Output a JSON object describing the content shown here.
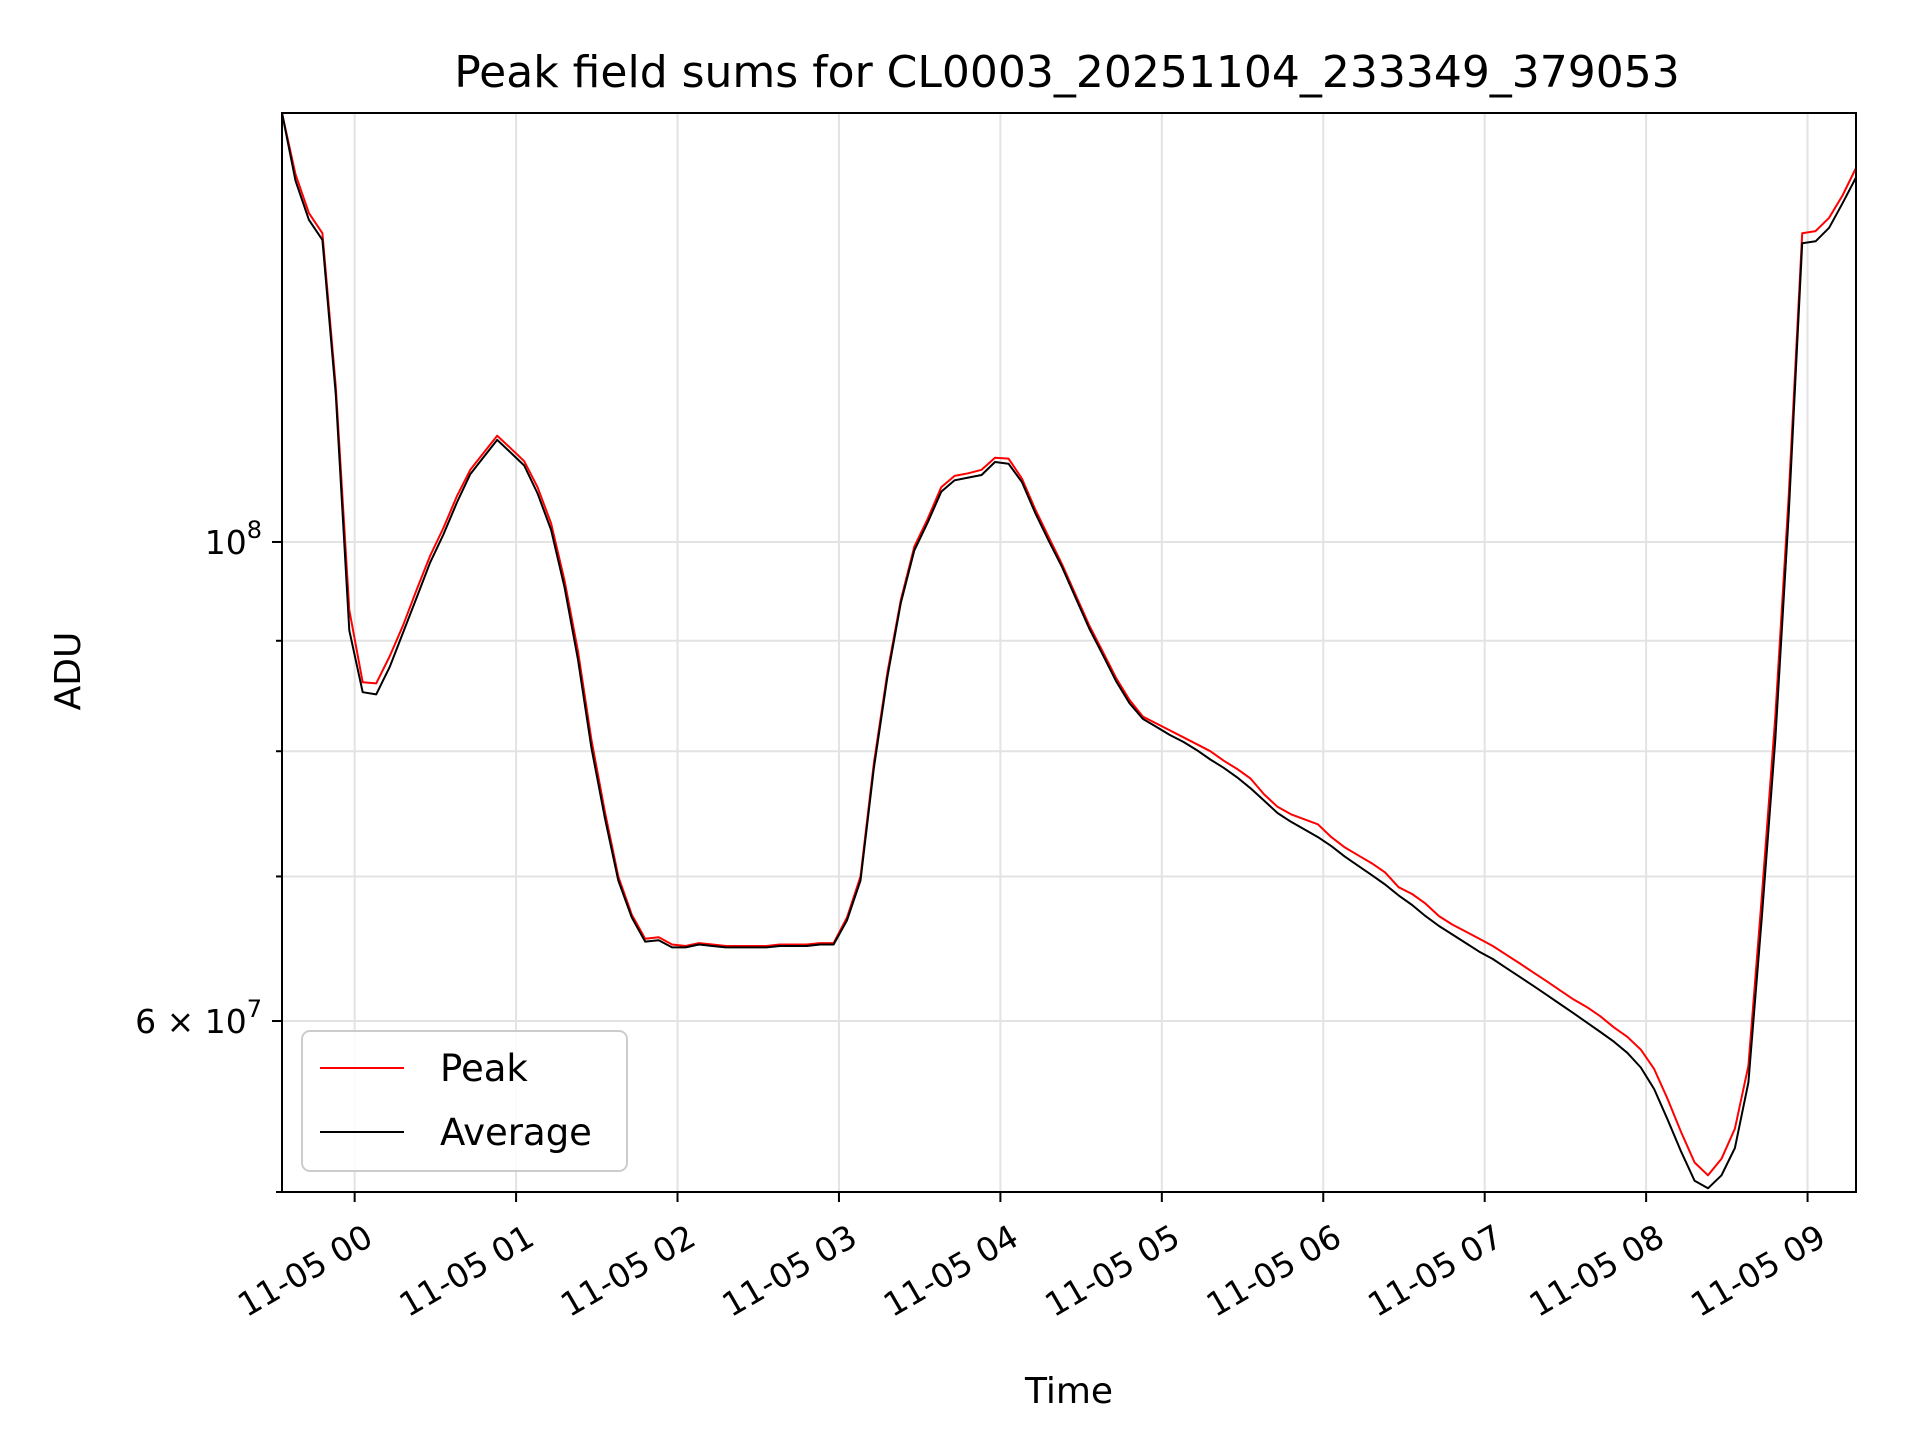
{
  "chart_data": {
    "type": "line",
    "title": "Peak field sums for CL0003_20251104_233349_379053",
    "xlabel": "Time",
    "ylabel": "ADU",
    "y_scale": "log",
    "ylim": [
      50000000,
      158000000
    ],
    "xlim": [
      "2025-11-04 23:33",
      "2025-11-05 09:18"
    ],
    "x_ticks": [
      {
        "at": "2025-11-05 00:00",
        "label": "11-05 00"
      },
      {
        "at": "2025-11-05 01:00",
        "label": "11-05 01"
      },
      {
        "at": "2025-11-05 02:00",
        "label": "11-05 02"
      },
      {
        "at": "2025-11-05 03:00",
        "label": "11-05 03"
      },
      {
        "at": "2025-11-05 04:00",
        "label": "11-05 04"
      },
      {
        "at": "2025-11-05 05:00",
        "label": "11-05 05"
      },
      {
        "at": "2025-11-05 06:00",
        "label": "11-05 06"
      },
      {
        "at": "2025-11-05 07:00",
        "label": "11-05 07"
      },
      {
        "at": "2025-11-05 08:00",
        "label": "11-05 08"
      },
      {
        "at": "2025-11-05 09:00",
        "label": "11-05 09"
      }
    ],
    "y_major_ticks": [
      {
        "value": 60000000,
        "mantissa": "6",
        "times": "×",
        "base": "10",
        "exponent": "7"
      },
      {
        "value": 100000000,
        "mantissa": "",
        "times": "",
        "base": "10",
        "exponent": "8"
      }
    ],
    "y_minor_ticks": [
      50000000,
      70000000,
      80000000,
      90000000
    ],
    "grid": true,
    "legend": {
      "placement": "lower-left"
    },
    "x": [
      "2025-11-04 23:33",
      "2025-11-04 23:38",
      "2025-11-04 23:43",
      "2025-11-04 23:48",
      "2025-11-04 23:53",
      "2025-11-04 23:58",
      "2025-11-05 00:03",
      "2025-11-05 00:08",
      "2025-11-05 00:13",
      "2025-11-05 00:18",
      "2025-11-05 00:23",
      "2025-11-05 00:28",
      "2025-11-05 00:33",
      "2025-11-05 00:38",
      "2025-11-05 00:43",
      "2025-11-05 00:48",
      "2025-11-05 00:53",
      "2025-11-05 00:58",
      "2025-11-05 01:03",
      "2025-11-05 01:08",
      "2025-11-05 01:13",
      "2025-11-05 01:18",
      "2025-11-05 01:23",
      "2025-11-05 01:28",
      "2025-11-05 01:33",
      "2025-11-05 01:38",
      "2025-11-05 01:43",
      "2025-11-05 01:48",
      "2025-11-05 01:53",
      "2025-11-05 01:58",
      "2025-11-05 02:03",
      "2025-11-05 02:08",
      "2025-11-05 02:13",
      "2025-11-05 02:18",
      "2025-11-05 02:23",
      "2025-11-05 02:28",
      "2025-11-05 02:33",
      "2025-11-05 02:38",
      "2025-11-05 02:43",
      "2025-11-05 02:48",
      "2025-11-05 02:53",
      "2025-11-05 02:58",
      "2025-11-05 03:03",
      "2025-11-05 03:08",
      "2025-11-05 03:13",
      "2025-11-05 03:18",
      "2025-11-05 03:23",
      "2025-11-05 03:28",
      "2025-11-05 03:33",
      "2025-11-05 03:38",
      "2025-11-05 03:43",
      "2025-11-05 03:48",
      "2025-11-05 03:53",
      "2025-11-05 03:58",
      "2025-11-05 04:03",
      "2025-11-05 04:08",
      "2025-11-05 04:13",
      "2025-11-05 04:18",
      "2025-11-05 04:23",
      "2025-11-05 04:28",
      "2025-11-05 04:33",
      "2025-11-05 04:38",
      "2025-11-05 04:43",
      "2025-11-05 04:48",
      "2025-11-05 04:53",
      "2025-11-05 04:58",
      "2025-11-05 05:03",
      "2025-11-05 05:08",
      "2025-11-05 05:13",
      "2025-11-05 05:18",
      "2025-11-05 05:23",
      "2025-11-05 05:28",
      "2025-11-05 05:33",
      "2025-11-05 05:38",
      "2025-11-05 05:43",
      "2025-11-05 05:48",
      "2025-11-05 05:53",
      "2025-11-05 05:58",
      "2025-11-05 06:03",
      "2025-11-05 06:08",
      "2025-11-05 06:13",
      "2025-11-05 06:18",
      "2025-11-05 06:23",
      "2025-11-05 06:28",
      "2025-11-05 06:33",
      "2025-11-05 06:38",
      "2025-11-05 06:43",
      "2025-11-05 06:48",
      "2025-11-05 06:53",
      "2025-11-05 06:58",
      "2025-11-05 07:03",
      "2025-11-05 07:08",
      "2025-11-05 07:13",
      "2025-11-05 07:18",
      "2025-11-05 07:23",
      "2025-11-05 07:28",
      "2025-11-05 07:33",
      "2025-11-05 07:38",
      "2025-11-05 07:43",
      "2025-11-05 07:48",
      "2025-11-05 07:53",
      "2025-11-05 07:58",
      "2025-11-05 08:03",
      "2025-11-05 08:08",
      "2025-11-05 08:13",
      "2025-11-05 08:18",
      "2025-11-05 08:23",
      "2025-11-05 08:28",
      "2025-11-05 08:33",
      "2025-11-05 08:38",
      "2025-11-05 08:43",
      "2025-11-05 08:48",
      "2025-11-05 08:53",
      "2025-11-05 08:58",
      "2025-11-05 09:03",
      "2025-11-05 09:08",
      "2025-11-05 09:13",
      "2025-11-05 09:18"
    ],
    "series": [
      {
        "name": "Peak",
        "color": "#ff0000",
        "values": [
          158000000,
          148000000,
          142000000,
          139000000,
          118000000,
          93000000,
          86100000,
          86000000,
          88500000,
          91500000,
          95000000,
          98500000,
          101500000,
          105000000,
          108000000,
          110000000,
          112000000,
          110500000,
          109000000,
          106000000,
          102000000,
          96000000,
          89000000,
          81000000,
          75000000,
          70000000,
          67200000,
          65500000,
          65600000,
          65100000,
          65000000,
          65200000,
          65100000,
          65000000,
          65000000,
          65000000,
          65000000,
          65100000,
          65100000,
          65100000,
          65200000,
          65200000,
          67000000,
          70000000,
          79000000,
          87000000,
          94000000,
          99500000,
          102500000,
          106000000,
          107300000,
          107600000,
          108000000,
          109400000,
          109300000,
          107000000,
          103500000,
          100500000,
          97600000,
          94500000,
          91500000,
          89000000,
          86500000,
          84500000,
          83000000,
          82400000,
          81800000,
          81200000,
          80600000,
          80000000,
          79200000,
          78500000,
          77700000,
          76400000,
          75400000,
          74800000,
          74400000,
          74000000,
          73000000,
          72200000,
          71600000,
          71000000,
          70300000,
          69200000,
          68700000,
          68000000,
          67100000,
          66500000,
          66000000,
          65500000,
          65000000,
          64400000,
          63800000,
          63200000,
          62600000,
          62000000,
          61400000,
          60900000,
          60300000,
          59600000,
          59000000,
          58200000,
          57000000,
          55200000,
          53300000,
          51600000,
          50900000,
          51800000,
          53500000,
          57200000,
          68500000,
          83000000,
          105000000,
          139000000,
          139300000,
          141300000,
          144700000,
          149000000
        ]
      },
      {
        "name": "Average",
        "color": "#000000",
        "values": [
          158000000,
          147000000,
          141000000,
          138000000,
          117000000,
          91000000,
          85200000,
          85000000,
          87500000,
          90800000,
          94200000,
          97800000,
          100800000,
          104300000,
          107500000,
          109500000,
          111500000,
          110000000,
          108500000,
          105300000,
          101300000,
          95300000,
          88200000,
          80300000,
          74500000,
          69700000,
          67000000,
          65300000,
          65400000,
          64900000,
          64900000,
          65100000,
          65000000,
          64900000,
          64900000,
          64900000,
          64900000,
          65000000,
          65000000,
          65000000,
          65100000,
          65100000,
          66800000,
          69700000,
          78600000,
          86600000,
          93700000,
          99100000,
          102100000,
          105500000,
          106800000,
          107100000,
          107400000,
          108900000,
          108700000,
          106600000,
          103100000,
          100100000,
          97300000,
          94200000,
          91200000,
          88700000,
          86200000,
          84200000,
          82800000,
          82100000,
          81400000,
          80800000,
          80100000,
          79300000,
          78600000,
          77800000,
          76900000,
          75900000,
          74900000,
          74200000,
          73600000,
          73000000,
          72300000,
          71500000,
          70800000,
          70100000,
          69400000,
          68600000,
          67900000,
          67100000,
          66400000,
          65800000,
          65200000,
          64600000,
          64100000,
          63500000,
          62900000,
          62300000,
          61700000,
          61100000,
          60500000,
          59900000,
          59300000,
          58700000,
          58000000,
          57100000,
          55800000,
          54000000,
          52200000,
          50600000,
          50200000,
          50900000,
          52400000,
          56200000,
          67000000,
          81000000,
          103000000,
          137500000,
          137800000,
          139800000,
          143500000,
          147500000
        ]
      }
    ]
  }
}
